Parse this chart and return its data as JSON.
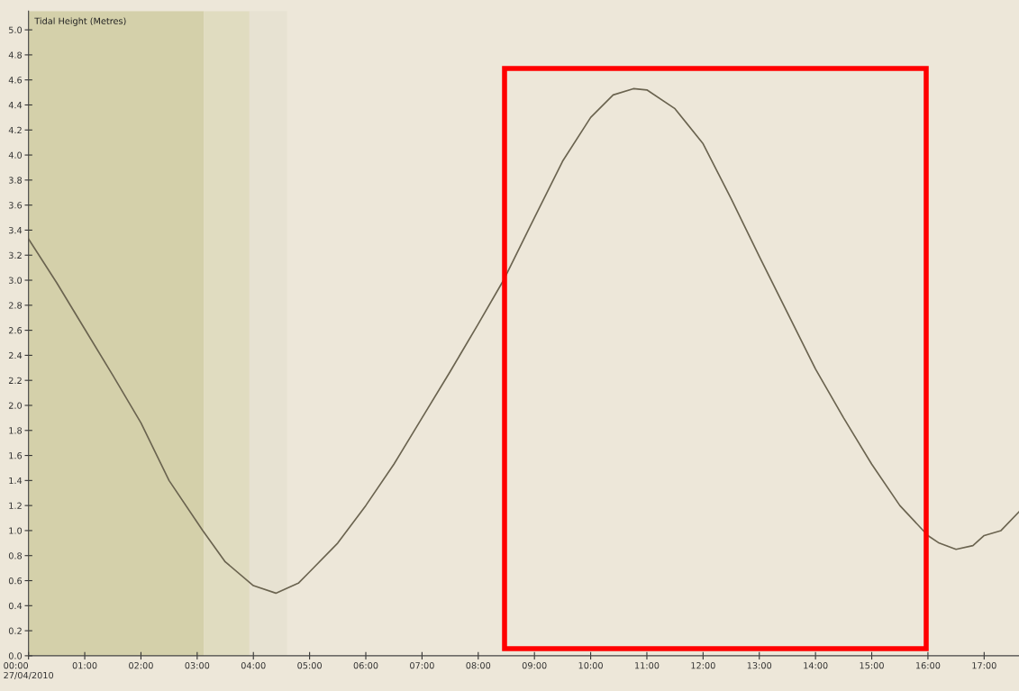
{
  "chart_data": {
    "type": "line",
    "ylabel": "Tidal Height (Metres)",
    "x": [
      0,
      0.5,
      1,
      1.5,
      2,
      2.5,
      3.1,
      3.5,
      4,
      4.4,
      4.8,
      5,
      5.5,
      6,
      6.5,
      7,
      7.5,
      8,
      8.45,
      9,
      9.5,
      10,
      10.4,
      10.76,
      11,
      11.5,
      12,
      12.5,
      13,
      13.5,
      14,
      14.5,
      15,
      15.5,
      16,
      16.2,
      16.5,
      16.8,
      17,
      17.3,
      17.62
    ],
    "series": [
      {
        "color": "#6b6450",
        "values": [
          3.33,
          2.98,
          2.61,
          2.24,
          1.86,
          1.4,
          1.0,
          0.75,
          0.56,
          0.5,
          0.58,
          0.67,
          0.9,
          1.2,
          1.53,
          1.9,
          2.27,
          2.65,
          3.0,
          3.5,
          3.95,
          4.3,
          4.48,
          4.53,
          4.52,
          4.37,
          4.09,
          3.65,
          3.19,
          2.74,
          2.29,
          1.9,
          1.53,
          1.2,
          0.96,
          0.9,
          0.85,
          0.88,
          0.96,
          1.0,
          1.15
        ]
      }
    ],
    "xlim": [
      0,
      17.62
    ],
    "xticks": [
      {
        "value": 0,
        "label": "00:00\n27/04/2010"
      },
      {
        "value": 1,
        "label": "01:00"
      },
      {
        "value": 2,
        "label": "02:00"
      },
      {
        "value": 3,
        "label": "03:00"
      },
      {
        "value": 4,
        "label": "04:00"
      },
      {
        "value": 5,
        "label": "05:00"
      },
      {
        "value": 6,
        "label": "06:00"
      },
      {
        "value": 7,
        "label": "07:00"
      },
      {
        "value": 8,
        "label": "08:00"
      },
      {
        "value": 9,
        "label": "09:00"
      },
      {
        "value": 10,
        "label": "10:00"
      },
      {
        "value": 11,
        "label": "11:00"
      },
      {
        "value": 12,
        "label": "12:00"
      },
      {
        "value": 13,
        "label": "13:00"
      },
      {
        "value": 14,
        "label": "14:00"
      },
      {
        "value": 15,
        "label": "15:00"
      },
      {
        "value": 16,
        "label": "16:00"
      },
      {
        "value": 17,
        "label": "17:00"
      }
    ],
    "ylim": [
      0,
      5.15
    ],
    "yticks": [
      {
        "value": 0,
        "label": "0.0"
      },
      {
        "value": 0.2,
        "label": "0.2"
      },
      {
        "value": 0.4,
        "label": "0.4"
      },
      {
        "value": 0.6,
        "label": "0.6"
      },
      {
        "value": 0.8,
        "label": "0.8"
      },
      {
        "value": 1.0,
        "label": "1.0"
      },
      {
        "value": 1.2,
        "label": "1.2"
      },
      {
        "value": 1.4,
        "label": "1.4"
      },
      {
        "value": 1.6,
        "label": "1.6"
      },
      {
        "value": 1.8,
        "label": "1.8"
      },
      {
        "value": 2.0,
        "label": "2.0"
      },
      {
        "value": 2.2,
        "label": "2.2"
      },
      {
        "value": 2.4,
        "label": "2.4"
      },
      {
        "value": 2.6,
        "label": "2.6"
      },
      {
        "value": 2.8,
        "label": "2.8"
      },
      {
        "value": 3.0,
        "label": "3.0"
      },
      {
        "value": 3.2,
        "label": "3.2"
      },
      {
        "value": 3.4,
        "label": "3.4"
      },
      {
        "value": 3.6,
        "label": "3.6"
      },
      {
        "value": 3.8,
        "label": "3.8"
      },
      {
        "value": 4.0,
        "label": "4.0"
      },
      {
        "value": 4.2,
        "label": "4.2"
      },
      {
        "value": 4.4,
        "label": "4.4"
      },
      {
        "value": 4.6,
        "label": "4.6"
      },
      {
        "value": 4.8,
        "label": "4.8"
      },
      {
        "value": 5.0,
        "label": "5.0"
      }
    ],
    "bands": [
      {
        "axis": "x",
        "from": 0,
        "to": 3.12,
        "color": "#d4d0aa"
      },
      {
        "axis": "x",
        "from": 3.12,
        "to": 3.93,
        "color": "#e0dcc0"
      },
      {
        "axis": "x",
        "from": 3.93,
        "to": 4.6,
        "color": "#e7e2d2"
      }
    ],
    "grid": false,
    "marker": "none",
    "line_style": "solid"
  }
}
